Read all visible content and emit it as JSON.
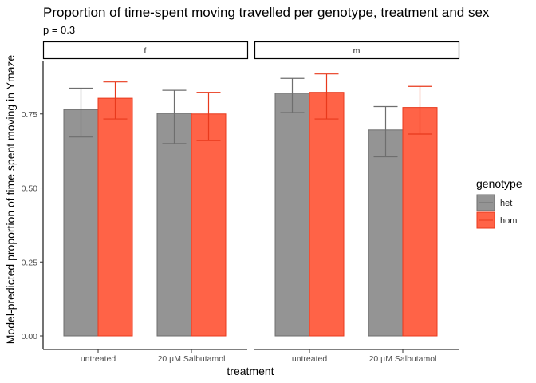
{
  "chart_data": {
    "type": "bar",
    "title": "Proportion of time-spent moving travelled per genotype, treatment and sex",
    "subtitle": "p = 0.3",
    "xlabel": "treatment",
    "ylabel": "Model-predicted proportion of time spent moving in Ymaze",
    "ylim": [
      0,
      0.93
    ],
    "yticks": [
      0.0,
      0.25,
      0.5,
      0.75
    ],
    "ytick_labels": [
      "0.00",
      "0.25",
      "0.50",
      "0.75"
    ],
    "categories": [
      "untreated",
      "20 µM Salbutamol"
    ],
    "grid": false,
    "legend": {
      "title": "genotype",
      "position": "right",
      "entries": [
        "het",
        "hom"
      ]
    },
    "colors": {
      "het_fill": "#949494",
      "het_border": "#6e6e6e",
      "hom_fill": "#ff6347",
      "hom_border": "#e8391c"
    },
    "panels": [
      {
        "label": "f",
        "series": [
          {
            "name": "het",
            "values": [
              0.765,
              0.752
            ],
            "lower": [
              0.672,
              0.65
            ],
            "upper": [
              0.837,
              0.83
            ]
          },
          {
            "name": "hom",
            "values": [
              0.803,
              0.75
            ],
            "lower": [
              0.733,
              0.66
            ],
            "upper": [
              0.858,
              0.823
            ]
          }
        ]
      },
      {
        "label": "m",
        "series": [
          {
            "name": "het",
            "values": [
              0.82,
              0.696
            ],
            "lower": [
              0.755,
              0.605
            ],
            "upper": [
              0.87,
              0.775
            ]
          },
          {
            "name": "hom",
            "values": [
              0.823,
              0.772
            ],
            "lower": [
              0.733,
              0.682
            ],
            "upper": [
              0.885,
              0.843
            ]
          }
        ]
      }
    ]
  }
}
